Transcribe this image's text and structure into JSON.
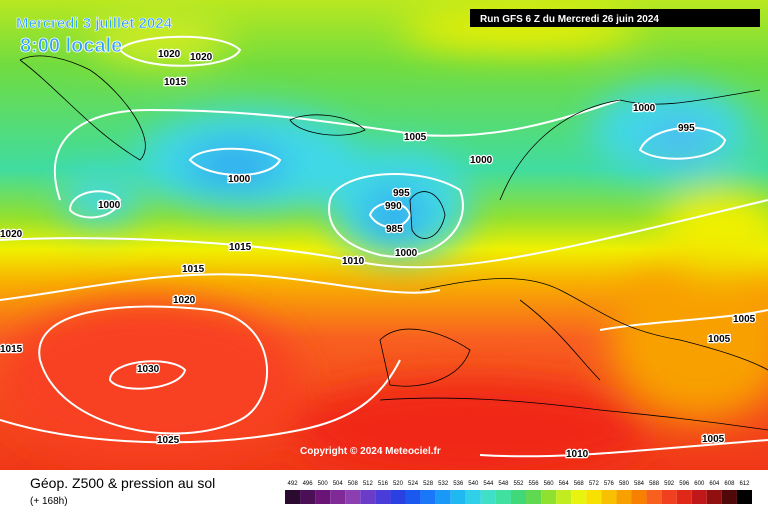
{
  "header": {
    "date": "Mercredi 3 juillet 2024",
    "time": "8:00 locale",
    "run": "Run GFS 6 Z du Mercredi 26 juin 2024"
  },
  "copyright": "Copyright © 2024 Meteociel.fr",
  "legend": {
    "title": "Géop. Z500 & pression au sol",
    "subtitle": "(+ 168h)",
    "labels": [
      492,
      496,
      500,
      504,
      508,
      512,
      516,
      520,
      524,
      528,
      532,
      536,
      540,
      544,
      548,
      552,
      556,
      560,
      564,
      568,
      572,
      576,
      580,
      584,
      588,
      592,
      596,
      600,
      604,
      608,
      612
    ],
    "colors": [
      "#2a0a2e",
      "#4a0f55",
      "#6a1478",
      "#7f2a96",
      "#8c3fb0",
      "#6a3cc8",
      "#4a3cd8",
      "#2a40e0",
      "#1a58f0",
      "#1a78f8",
      "#1a98f8",
      "#20b8f0",
      "#30d0e8",
      "#40e0c8",
      "#40e0a0",
      "#40d878",
      "#60d850",
      "#90e030",
      "#c0ec20",
      "#e8f410",
      "#f8e000",
      "#f8c000",
      "#f8a000",
      "#f88000",
      "#f86020",
      "#f04020",
      "#e02818",
      "#c01818",
      "#901010",
      "#500808",
      "#000000"
    ]
  },
  "isobars": [
    "1020",
    "1020",
    "1015",
    "1005",
    "1000",
    "1000",
    "1000",
    "995",
    "995",
    "990",
    "985",
    "1000",
    "1015",
    "1015",
    "1010",
    "1020",
    "1030",
    "1025",
    "1010",
    "1005",
    "1005",
    "1005",
    "1000",
    "1020",
    "1015"
  ]
}
